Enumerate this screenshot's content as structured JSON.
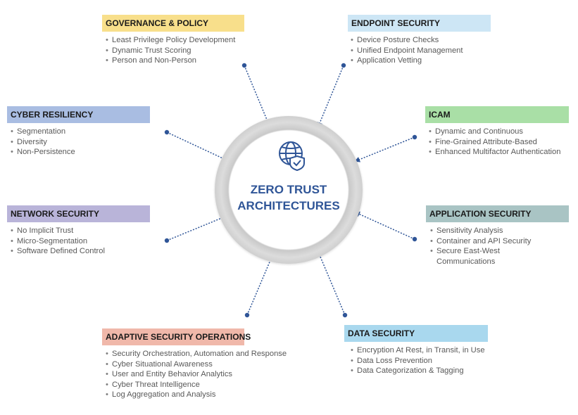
{
  "center": {
    "title_line1": "ZERO TRUST",
    "title_line2": "ARCHITECTURES",
    "icon": "globe-shield-icon"
  },
  "colors": {
    "center_text": "#2f5597",
    "arrow": "#2f5597",
    "governance": "#f8df8b",
    "endpoint": "#cde6f5",
    "cyber_resiliency": "#a9bde2",
    "icam": "#a9dfa6",
    "network": "#b9b4d9",
    "application": "#a9c4c4",
    "adaptive": "#f0b8aa",
    "data": "#a9d8ee"
  },
  "panels": {
    "governance": {
      "title": "GOVERNANCE & POLICY",
      "items": [
        "Least Privilege Policy Development",
        "Dynamic Trust Scoring",
        "Person and Non-Person"
      ]
    },
    "endpoint": {
      "title": "ENDPOINT SECURITY",
      "items": [
        "Device Posture Checks",
        "Unified Endpoint Management",
        "Application Vetting"
      ]
    },
    "cyber_resiliency": {
      "title": "CYBER RESILIENCY",
      "items": [
        "Segmentation",
        "Diversity",
        "Non-Persistence"
      ]
    },
    "icam": {
      "title": "ICAM",
      "items": [
        "Dynamic and Continuous",
        "Fine-Grained Attribute-Based",
        "Enhanced Multifactor Authentication"
      ]
    },
    "network": {
      "title": "NETWORK SECURITY",
      "items": [
        "No Implicit Trust",
        "Micro-Segmentation",
        "Software Defined Control"
      ]
    },
    "application": {
      "title": "APPLICATION SECURITY",
      "items": [
        "Sensitivity Analysis",
        "Container and API Security",
        "Secure East-West Communications"
      ]
    },
    "adaptive": {
      "title": "ADAPTIVE SECURITY OPERATIONS",
      "items": [
        "Security Orchestration, Automation and Response",
        "Cyber Situational Awareness",
        "User and Entity Behavior Analytics",
        "Cyber Threat Intelligence",
        "Log Aggregation and Analysis"
      ]
    },
    "data": {
      "title": "DATA SECURITY",
      "items": [
        "Encryption At Rest, in Transit, in Use",
        "Data Loss Prevention",
        "Data Categorization & Tagging"
      ]
    }
  }
}
